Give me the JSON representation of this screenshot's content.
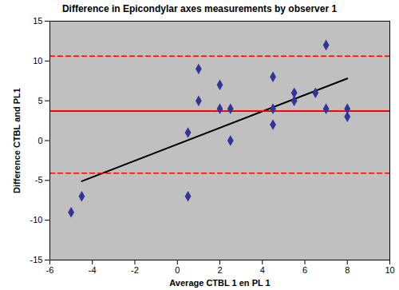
{
  "chart_data": {
    "type": "scatter",
    "title": "Difference in Epicondylar axes measurements by observer 1",
    "x_label": "Average CTBL 1 en PL 1",
    "y_label": "Difference CTBL and PL1",
    "xlim": [
      -6,
      10
    ],
    "xticks": [
      -6,
      -4,
      -2,
      0,
      2,
      4,
      6,
      8,
      10
    ],
    "ylim": [
      -15,
      15
    ],
    "yticks": [
      -15,
      -10,
      -5,
      0,
      5,
      10,
      15
    ],
    "grid": false,
    "series": [
      {
        "type": "scatter",
        "marker": "diamond",
        "color": "#333399",
        "x": [
          -5,
          -4.5,
          0.5,
          0.5,
          1,
          1,
          2,
          2,
          2.5,
          2.5,
          4.5,
          4.5,
          4.5,
          5.5,
          5.5,
          6.5,
          7,
          7,
          8,
          8
        ],
        "values": [
          -9,
          -7,
          1,
          -7,
          9,
          5,
          7,
          4,
          4,
          0,
          8,
          4,
          2,
          6,
          5,
          6,
          12,
          4,
          4,
          3
        ]
      },
      {
        "type": "line",
        "line_style": "solid",
        "color": "#000000",
        "x": [
          -4.5,
          8
        ],
        "values": [
          -5.1,
          7.8
        ]
      },
      {
        "type": "line",
        "line_style": "solid",
        "color": "#ff0000",
        "x": [
          -6,
          10
        ],
        "values": [
          3.7,
          3.7
        ]
      },
      {
        "type": "line",
        "line_style": "dashed",
        "color": "#ff0000",
        "x": [
          -6,
          10
        ],
        "values": [
          10.6,
          10.6
        ]
      },
      {
        "type": "line",
        "line_style": "dashed",
        "color": "#ff0000",
        "x": [
          -6,
          10
        ],
        "values": [
          -4.1,
          -4.1
        ]
      }
    ]
  }
}
